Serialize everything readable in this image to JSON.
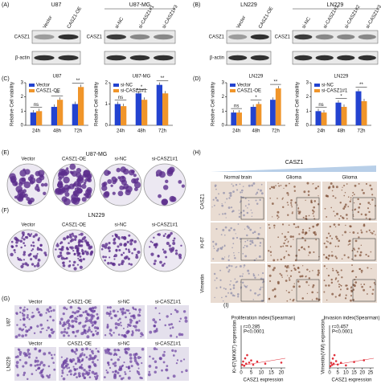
{
  "labels": {
    "A": "(A)",
    "B": "(B)",
    "C": "(C)",
    "D": "(D)",
    "E": "(E)",
    "F": "(F)",
    "G": "(G)",
    "H": "(H)",
    "I": "(I)"
  },
  "blots": [
    {
      "title": "U87",
      "lanes": [
        "Vector",
        "CASZ1-OE"
      ],
      "rows": [
        "CASZ1",
        "β-actin"
      ]
    },
    {
      "title": "U87-MG",
      "lanes": [
        "si-NC",
        "si-CASZ1#1",
        "si-CASZ1#3"
      ],
      "rows": [
        "CASZ1"
      ]
    },
    {
      "title": "LN229",
      "lanes": [
        "Vector",
        "CASZ1-OE"
      ],
      "rows": [
        "CASZ1",
        "β-actin"
      ]
    },
    {
      "title": "LN229",
      "lanes": [
        "si-NC",
        "si-CASZ1#1",
        "si-CASZ1#2",
        "si-CASZ1#3"
      ],
      "rows": [
        "CASZ1"
      ]
    }
  ],
  "chart_data": [
    {
      "type": "bar",
      "title": "U87",
      "ylabel": "Relative Cell viability",
      "categories": [
        "24h",
        "48h",
        "72h"
      ],
      "series": [
        {
          "name": "Vector",
          "color": "#2343d0",
          "values": [
            0.9,
            1.3,
            1.5
          ]
        },
        {
          "name": "CASZ1-OE",
          "color": "#f0952a",
          "values": [
            1.0,
            1.8,
            2.7
          ]
        }
      ],
      "ylim": [
        0,
        3
      ],
      "yticks": [
        0,
        1,
        2,
        3
      ],
      "significance": [
        "ns",
        "**",
        "**"
      ]
    },
    {
      "type": "bar",
      "title": "U87-MG",
      "ylabel": "Relative Cell viability",
      "categories": [
        "24h",
        "48h",
        "72h"
      ],
      "series": [
        {
          "name": "si-NC",
          "color": "#2343d0",
          "values": [
            1.0,
            1.5,
            1.9
          ]
        },
        {
          "name": "si-CASZ1#1",
          "color": "#f0952a",
          "values": [
            0.9,
            1.2,
            1.5
          ]
        }
      ],
      "ylim": [
        0,
        2
      ],
      "yticks": [
        0,
        1,
        2
      ],
      "significance": [
        "ns",
        "*",
        "**"
      ]
    },
    {
      "type": "bar",
      "title": "LN229",
      "ylabel": "Relative Cell viability",
      "categories": [
        "24h",
        "48h",
        "72h"
      ],
      "series": [
        {
          "name": "Vector",
          "color": "#2343d0",
          "values": [
            0.9,
            1.3,
            1.8
          ]
        },
        {
          "name": "CASZ1-OE",
          "color": "#f0952a",
          "values": [
            0.9,
            1.5,
            2.6
          ]
        }
      ],
      "ylim": [
        0,
        3
      ],
      "yticks": [
        0,
        1,
        2,
        3
      ],
      "significance": [
        "ns",
        "*",
        "**"
      ]
    },
    {
      "type": "bar",
      "title": "LN229",
      "ylabel": "Relative Cell viability",
      "categories": [
        "24h",
        "48h",
        "72h"
      ],
      "series": [
        {
          "name": "si-NC",
          "color": "#2343d0",
          "values": [
            1.0,
            1.6,
            2.4
          ]
        },
        {
          "name": "si-CASZ1#1",
          "color": "#f0952a",
          "values": [
            0.9,
            1.3,
            1.7
          ]
        }
      ],
      "ylim": [
        0,
        3
      ],
      "yticks": [
        0,
        1,
        2,
        3
      ],
      "significance": [
        "ns",
        "*",
        "**"
      ]
    },
    {
      "type": "scatter",
      "title": "Proliferation index(Spearman)",
      "xlabel": "CASZ1 expression",
      "ylabel": "Ki-67(MKI67) expression",
      "annotations": [
        "r=0.285",
        "P<0.0001"
      ],
      "color": "#e0303a",
      "x": [
        0.5,
        1,
        1.5,
        2,
        2.5,
        3,
        4,
        5,
        6,
        8,
        12,
        20
      ],
      "values": [
        3,
        6,
        2,
        9,
        4,
        12,
        5,
        7,
        3,
        6,
        4,
        5
      ],
      "xlim": [
        0,
        22
      ],
      "xticks": [
        0,
        5,
        10,
        15,
        20
      ],
      "ylim": [
        0,
        40
      ]
    },
    {
      "type": "scatter",
      "title": "Invasion index(Spearman)",
      "xlabel": "CASZ1 expression",
      "ylabel": "Vimentin(VIM) expression",
      "annotations": [
        "r=0.457",
        "P<0.0001"
      ],
      "color": "#e0303a",
      "x": [
        0.5,
        1,
        1.5,
        2,
        2.5,
        3,
        4,
        5,
        7,
        10,
        15,
        21
      ],
      "values": [
        20,
        60,
        35,
        110,
        50,
        150,
        80,
        40,
        60,
        30,
        70,
        90
      ],
      "xlim": [
        0,
        27
      ],
      "xticks": [
        0,
        5,
        10,
        15,
        20,
        25
      ],
      "ylim": [
        0,
        500
      ]
    }
  ],
  "colony": [
    {
      "title": "U87-MG",
      "lanes": [
        "Vector",
        "CASZ1-OE",
        "si-NC",
        "si-CASZ1#1"
      ]
    },
    {
      "title": "LN229",
      "lanes": [
        "Vector",
        "CASZ1-OE",
        "si-NC",
        "si-CASZ1#1"
      ]
    }
  ],
  "transwell": {
    "columns": [
      "Vector",
      "CASZ1-OE",
      "si-NC",
      "si-CASZ1#1"
    ],
    "rows": [
      "U87",
      "LN229"
    ]
  },
  "ihc": {
    "header": "CASZ1",
    "columns": [
      "Normal brain",
      "Glioma",
      "Glioma"
    ],
    "rows": [
      "CASZ1",
      "Ki-67",
      "Vimentin"
    ]
  }
}
